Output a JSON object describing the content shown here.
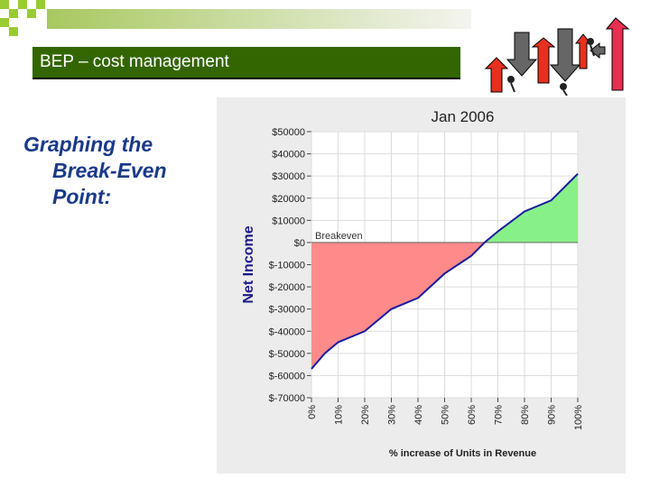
{
  "slide": {
    "title": "BEP – cost management",
    "heading_lines": [
      "Graphing the",
      "Break-Even",
      "Point:"
    ]
  },
  "colors": {
    "title_bar": "#336600",
    "heading_text": "#1a3a88",
    "loss_fill": "#ff8a8a",
    "profit_fill": "#88f088",
    "line": "#1a1aa0",
    "deco_green": "#99cc33"
  },
  "chart_data": {
    "type": "area",
    "title": "Jan 2006",
    "xlabel": "% increase of Units in Revenue",
    "ylabel": "Net Income",
    "x_ticks": [
      "0%",
      "10%",
      "20%",
      "30%",
      "40%",
      "50%",
      "60%",
      "70%",
      "80%",
      "90%",
      "100%"
    ],
    "y_ticks": [
      "$50000",
      "$40000",
      "$30000",
      "$20000",
      "$10000",
      "$0",
      "$-10000",
      "$-20000",
      "$-30000",
      "$-40000",
      "$-50000",
      "$-60000",
      "$-70000"
    ],
    "xlim": [
      0,
      100
    ],
    "ylim": [
      -70000,
      50000
    ],
    "annotation": "Breakeven",
    "grid": true,
    "x": [
      0,
      5,
      10,
      20,
      30,
      40,
      50,
      60,
      65,
      70,
      80,
      90,
      100
    ],
    "values": [
      -57000,
      -50000,
      -45000,
      -40000,
      -30000,
      -25000,
      -14000,
      -6000,
      0,
      5000,
      14000,
      19000,
      31000
    ]
  }
}
